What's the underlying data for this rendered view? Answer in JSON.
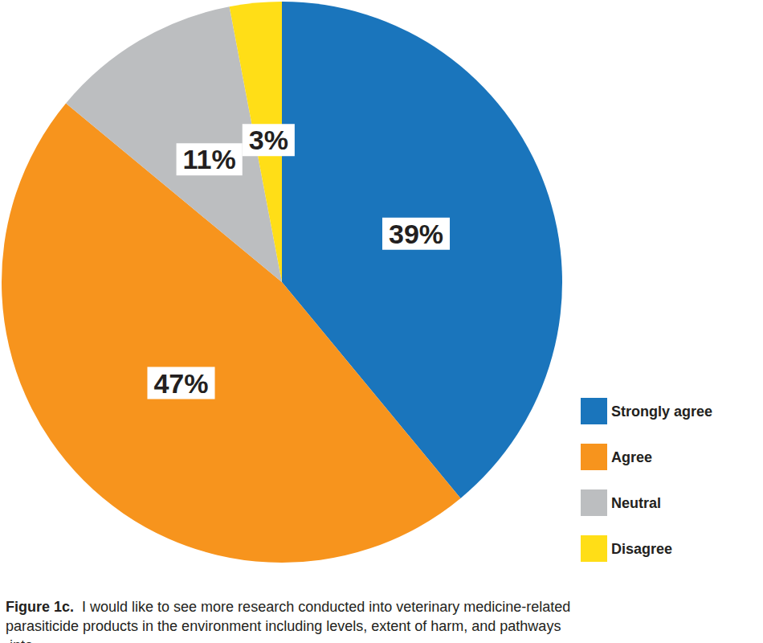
{
  "chart_data": {
    "type": "pie",
    "title": "Figure 1c.",
    "subtitle": "I would like to see more research conducted into veterinary medicine-related parasiticide products in the environment including levels, extent of harm, and pathways into.",
    "categories": [
      "Strongly agree",
      "Agree",
      "Neutral",
      "Disagree"
    ],
    "values": [
      39,
      47,
      11,
      3
    ],
    "value_labels": [
      "39%",
      "47%",
      "11%",
      "3%"
    ],
    "colors": [
      "#1a75bc",
      "#f7941d",
      "#bcbec0",
      "#ffde17"
    ],
    "data_labels": true,
    "legend": "lower right"
  }
}
